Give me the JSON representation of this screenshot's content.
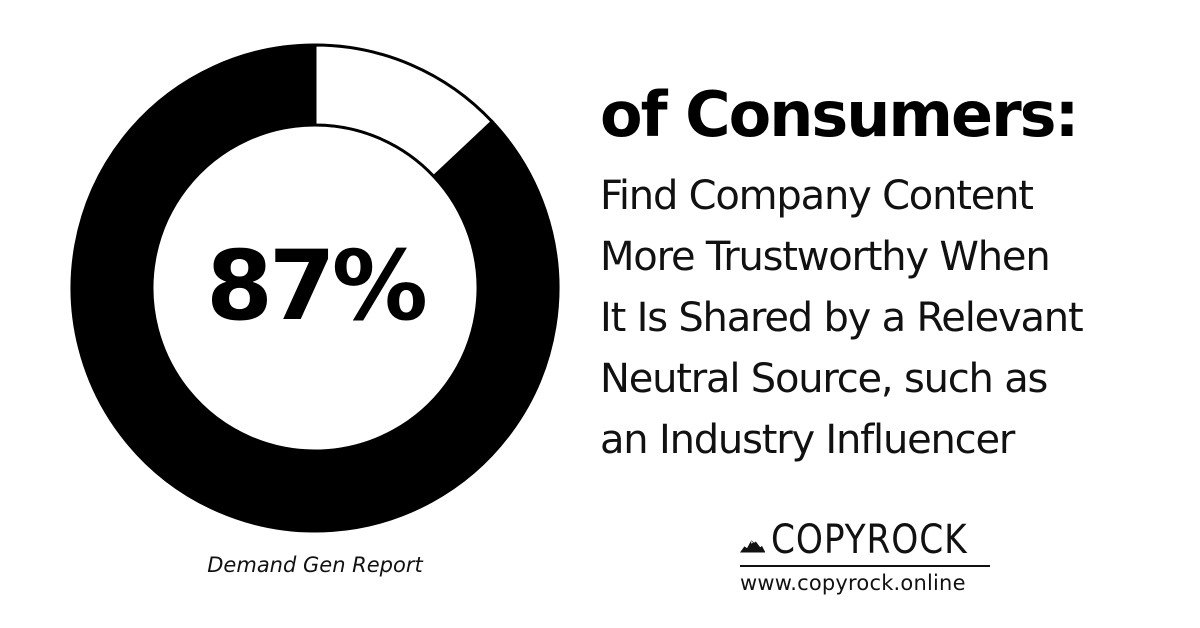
{
  "chart_data": {
    "type": "pie",
    "style": "donut",
    "values": [
      87,
      13
    ],
    "colors": [
      "#000000",
      "#ffffff"
    ],
    "center_label": "87%",
    "source": "Demand Gen Report"
  },
  "headline": "of Consumers:",
  "body_lines": [
    "Find Company Content",
    "More Trustworthy When",
    "It Is Shared by a Relevant",
    "Neutral Source, such as",
    "an Industry Influencer"
  ],
  "logo": {
    "name": "COPYROCK",
    "url": "www.copyrock.online",
    "icon": "mountain-logo-icon"
  }
}
